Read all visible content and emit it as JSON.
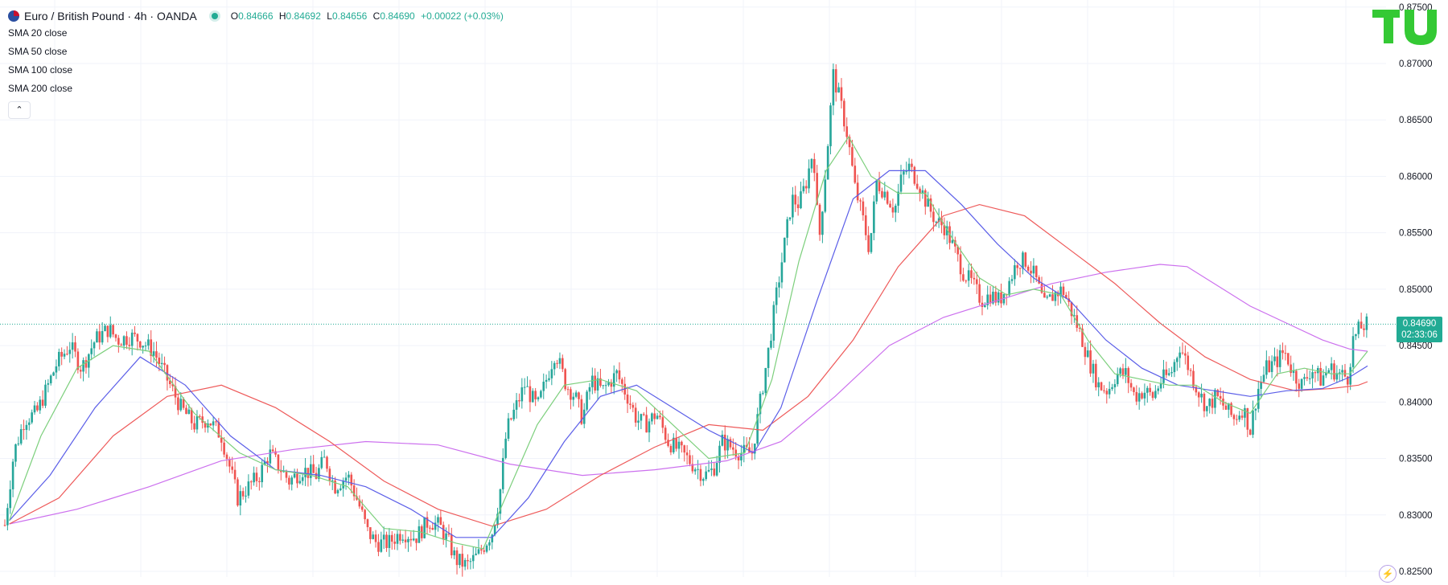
{
  "header": {
    "title": "Euro / British Pound · 4h · OANDA",
    "ohlc": {
      "o_label": "O",
      "o": "0.84666",
      "h_label": "H",
      "h": "0.84692",
      "l_label": "L",
      "l": "0.84656",
      "c_label": "C",
      "c": "0.84690",
      "change": "+0.00022 (+0.03%)"
    }
  },
  "indicators": [
    "SMA 20 close",
    "SMA 50 close",
    "SMA 100 close",
    "SMA 200 close"
  ],
  "collapse_icon": "chevron-up-icon",
  "current_price": {
    "price": "0.84690",
    "countdown": "02:33:06"
  },
  "colors": {
    "up": "#26a69a",
    "down": "#ef5350",
    "sma20": "#7ccf7c",
    "sma50": "#5b5ee8",
    "sma100": "#ee5a5a",
    "sma200": "#cc70ee",
    "grid": "#f0f3fa",
    "accent": "#22ab94",
    "logo": "#34c934"
  },
  "chart_data": {
    "type": "candlestick",
    "ylim": [
      0.8245,
      0.8752
    ],
    "y_ticks": [
      "0.87500",
      "0.87000",
      "0.86500",
      "0.86000",
      "0.85500",
      "0.85000",
      "0.84500",
      "0.84000",
      "0.83500",
      "0.83000",
      "0.82500"
    ],
    "current_price": 0.8469,
    "price_path": [
      [
        0,
        0.8291
      ],
      [
        10,
        0.8355
      ],
      [
        22,
        0.8385
      ],
      [
        35,
        0.839
      ],
      [
        48,
        0.8415
      ],
      [
        58,
        0.8435
      ],
      [
        72,
        0.845
      ],
      [
        85,
        0.843
      ],
      [
        100,
        0.8455
      ],
      [
        115,
        0.8465
      ],
      [
        125,
        0.8455
      ],
      [
        140,
        0.8458
      ],
      [
        150,
        0.8455
      ],
      [
        165,
        0.8445
      ],
      [
        180,
        0.842
      ],
      [
        195,
        0.8395
      ],
      [
        210,
        0.838
      ],
      [
        225,
        0.8385
      ],
      [
        240,
        0.837
      ],
      [
        250,
        0.834
      ],
      [
        258,
        0.8315
      ],
      [
        270,
        0.8325
      ],
      [
        282,
        0.8335
      ],
      [
        293,
        0.8355
      ],
      [
        302,
        0.8345
      ],
      [
        315,
        0.833
      ],
      [
        330,
        0.834
      ],
      [
        345,
        0.8335
      ],
      [
        355,
        0.835
      ],
      [
        365,
        0.8325
      ],
      [
        380,
        0.8335
      ],
      [
        392,
        0.831
      ],
      [
        402,
        0.8285
      ],
      [
        412,
        0.8275
      ],
      [
        425,
        0.8275
      ],
      [
        440,
        0.8285
      ],
      [
        455,
        0.828
      ],
      [
        470,
        0.8295
      ],
      [
        482,
        0.829
      ],
      [
        492,
        0.8275
      ],
      [
        500,
        0.826
      ],
      [
        512,
        0.8255
      ],
      [
        525,
        0.8265
      ],
      [
        540,
        0.8285
      ],
      [
        548,
        0.8315
      ],
      [
        556,
        0.8375
      ],
      [
        566,
        0.8395
      ],
      [
        576,
        0.8415
      ],
      [
        590,
        0.8395
      ],
      [
        600,
        0.842
      ],
      [
        610,
        0.8445
      ],
      [
        622,
        0.8415
      ],
      [
        632,
        0.8405
      ],
      [
        640,
        0.8385
      ],
      [
        650,
        0.842
      ],
      [
        662,
        0.841
      ],
      [
        678,
        0.8425
      ],
      [
        690,
        0.8405
      ],
      [
        700,
        0.8385
      ],
      [
        710,
        0.838
      ],
      [
        722,
        0.839
      ],
      [
        735,
        0.8365
      ],
      [
        750,
        0.8355
      ],
      [
        762,
        0.8345
      ],
      [
        775,
        0.8335
      ],
      [
        785,
        0.834
      ],
      [
        795,
        0.8365
      ],
      [
        805,
        0.836
      ],
      [
        815,
        0.8355
      ],
      [
        828,
        0.8355
      ],
      [
        838,
        0.8405
      ],
      [
        846,
        0.8445
      ],
      [
        855,
        0.8495
      ],
      [
        865,
        0.8545
      ],
      [
        872,
        0.858
      ],
      [
        880,
        0.8575
      ],
      [
        888,
        0.8595
      ],
      [
        896,
        0.8625
      ],
      [
        902,
        0.854
      ],
      [
        910,
        0.861
      ],
      [
        918,
        0.869
      ],
      [
        926,
        0.8665
      ],
      [
        934,
        0.8635
      ],
      [
        942,
        0.859
      ],
      [
        950,
        0.8565
      ],
      [
        958,
        0.8535
      ],
      [
        966,
        0.8595
      ],
      [
        976,
        0.8585
      ],
      [
        986,
        0.857
      ],
      [
        994,
        0.86
      ],
      [
        1002,
        0.8608
      ],
      [
        1012,
        0.8595
      ],
      [
        1022,
        0.8575
      ],
      [
        1032,
        0.856
      ],
      [
        1042,
        0.8555
      ],
      [
        1052,
        0.8535
      ],
      [
        1062,
        0.8515
      ],
      [
        1072,
        0.8505
      ],
      [
        1082,
        0.849
      ],
      [
        1092,
        0.8495
      ],
      [
        1102,
        0.849
      ],
      [
        1112,
        0.8505
      ],
      [
        1122,
        0.8525
      ],
      [
        1132,
        0.8525
      ],
      [
        1142,
        0.851
      ],
      [
        1152,
        0.8485
      ],
      [
        1162,
        0.8495
      ],
      [
        1172,
        0.85
      ],
      [
        1182,
        0.848
      ],
      [
        1192,
        0.846
      ],
      [
        1202,
        0.8435
      ],
      [
        1212,
        0.8415
      ],
      [
        1222,
        0.841
      ],
      [
        1232,
        0.8425
      ],
      [
        1242,
        0.8425
      ],
      [
        1252,
        0.8405
      ],
      [
        1262,
        0.841
      ],
      [
        1272,
        0.8405
      ],
      [
        1282,
        0.842
      ],
      [
        1292,
        0.8425
      ],
      [
        1302,
        0.845
      ],
      [
        1312,
        0.843
      ],
      [
        1322,
        0.841
      ],
      [
        1332,
        0.8395
      ],
      [
        1342,
        0.8405
      ],
      [
        1352,
        0.8395
      ],
      [
        1362,
        0.8385
      ],
      [
        1372,
        0.8395
      ],
      [
        1380,
        0.8375
      ],
      [
        1388,
        0.841
      ],
      [
        1398,
        0.843
      ],
      [
        1408,
        0.8435
      ],
      [
        1418,
        0.8445
      ],
      [
        1428,
        0.8425
      ],
      [
        1438,
        0.8415
      ],
      [
        1448,
        0.843
      ],
      [
        1458,
        0.842
      ],
      [
        1468,
        0.843
      ],
      [
        1478,
        0.8425
      ],
      [
        1488,
        0.8422
      ],
      [
        1494,
        0.8455
      ],
      [
        1502,
        0.8466
      ],
      [
        1510,
        0.8469
      ]
    ],
    "sma20": [
      [
        5,
        0.8295
      ],
      [
        40,
        0.837
      ],
      [
        80,
        0.843
      ],
      [
        120,
        0.845
      ],
      [
        160,
        0.8445
      ],
      [
        210,
        0.839
      ],
      [
        260,
        0.8355
      ],
      [
        300,
        0.834
      ],
      [
        340,
        0.8335
      ],
      [
        380,
        0.8325
      ],
      [
        420,
        0.8288
      ],
      [
        460,
        0.8285
      ],
      [
        500,
        0.8275
      ],
      [
        530,
        0.827
      ],
      [
        560,
        0.8325
      ],
      [
        590,
        0.838
      ],
      [
        620,
        0.8415
      ],
      [
        660,
        0.842
      ],
      [
        700,
        0.841
      ],
      [
        740,
        0.838
      ],
      [
        780,
        0.835
      ],
      [
        820,
        0.8355
      ],
      [
        850,
        0.842
      ],
      [
        880,
        0.8525
      ],
      [
        910,
        0.8605
      ],
      [
        935,
        0.8635
      ],
      [
        960,
        0.86
      ],
      [
        990,
        0.8585
      ],
      [
        1020,
        0.8585
      ],
      [
        1050,
        0.8545
      ],
      [
        1080,
        0.851
      ],
      [
        1110,
        0.8495
      ],
      [
        1140,
        0.85
      ],
      [
        1170,
        0.8495
      ],
      [
        1200,
        0.8455
      ],
      [
        1230,
        0.8425
      ],
      [
        1260,
        0.842
      ],
      [
        1290,
        0.8415
      ],
      [
        1320,
        0.8415
      ],
      [
        1350,
        0.84
      ],
      [
        1380,
        0.839
      ],
      [
        1410,
        0.8425
      ],
      [
        1440,
        0.843
      ],
      [
        1470,
        0.8425
      ],
      [
        1490,
        0.8425
      ],
      [
        1510,
        0.8445
      ]
    ],
    "sma50": [
      [
        5,
        0.8295
      ],
      [
        50,
        0.8335
      ],
      [
        100,
        0.8395
      ],
      [
        150,
        0.844
      ],
      [
        200,
        0.8415
      ],
      [
        250,
        0.837
      ],
      [
        300,
        0.834
      ],
      [
        350,
        0.8335
      ],
      [
        400,
        0.8325
      ],
      [
        450,
        0.8305
      ],
      [
        500,
        0.828
      ],
      [
        540,
        0.828
      ],
      [
        580,
        0.8315
      ],
      [
        620,
        0.8365
      ],
      [
        660,
        0.8405
      ],
      [
        700,
        0.8415
      ],
      [
        740,
        0.8395
      ],
      [
        780,
        0.8375
      ],
      [
        830,
        0.8355
      ],
      [
        860,
        0.8395
      ],
      [
        900,
        0.849
      ],
      [
        940,
        0.858
      ],
      [
        980,
        0.8605
      ],
      [
        1020,
        0.8605
      ],
      [
        1060,
        0.8575
      ],
      [
        1100,
        0.854
      ],
      [
        1140,
        0.851
      ],
      [
        1180,
        0.849
      ],
      [
        1220,
        0.8455
      ],
      [
        1260,
        0.843
      ],
      [
        1300,
        0.8415
      ],
      [
        1340,
        0.841
      ],
      [
        1380,
        0.8405
      ],
      [
        1420,
        0.841
      ],
      [
        1460,
        0.8412
      ],
      [
        1490,
        0.8422
      ],
      [
        1510,
        0.8432
      ]
    ],
    "sma100": [
      [
        5,
        0.8292
      ],
      [
        60,
        0.8315
      ],
      [
        120,
        0.837
      ],
      [
        180,
        0.8405
      ],
      [
        240,
        0.8415
      ],
      [
        300,
        0.8395
      ],
      [
        360,
        0.8365
      ],
      [
        420,
        0.833
      ],
      [
        480,
        0.8305
      ],
      [
        540,
        0.829
      ],
      [
        600,
        0.8305
      ],
      [
        660,
        0.8335
      ],
      [
        720,
        0.836
      ],
      [
        780,
        0.838
      ],
      [
        840,
        0.8375
      ],
      [
        890,
        0.8405
      ],
      [
        940,
        0.8455
      ],
      [
        990,
        0.852
      ],
      [
        1040,
        0.8565
      ],
      [
        1080,
        0.8575
      ],
      [
        1130,
        0.8565
      ],
      [
        1180,
        0.8535
      ],
      [
        1230,
        0.8505
      ],
      [
        1280,
        0.847
      ],
      [
        1330,
        0.844
      ],
      [
        1380,
        0.842
      ],
      [
        1430,
        0.841
      ],
      [
        1470,
        0.8412
      ],
      [
        1500,
        0.8415
      ],
      [
        1510,
        0.8418
      ]
    ],
    "sma200": [
      [
        5,
        0.8292
      ],
      [
        80,
        0.8305
      ],
      [
        160,
        0.8325
      ],
      [
        240,
        0.8348
      ],
      [
        320,
        0.8358
      ],
      [
        400,
        0.8365
      ],
      [
        480,
        0.8362
      ],
      [
        560,
        0.8345
      ],
      [
        640,
        0.8335
      ],
      [
        720,
        0.834
      ],
      [
        800,
        0.8348
      ],
      [
        860,
        0.8365
      ],
      [
        920,
        0.8405
      ],
      [
        980,
        0.845
      ],
      [
        1040,
        0.8475
      ],
      [
        1100,
        0.849
      ],
      [
        1160,
        0.8505
      ],
      [
        1220,
        0.8515
      ],
      [
        1280,
        0.8522
      ],
      [
        1310,
        0.852
      ],
      [
        1340,
        0.8505
      ],
      [
        1380,
        0.8485
      ],
      [
        1420,
        0.847
      ],
      [
        1460,
        0.8455
      ],
      [
        1490,
        0.8447
      ],
      [
        1510,
        0.8445
      ]
    ]
  }
}
